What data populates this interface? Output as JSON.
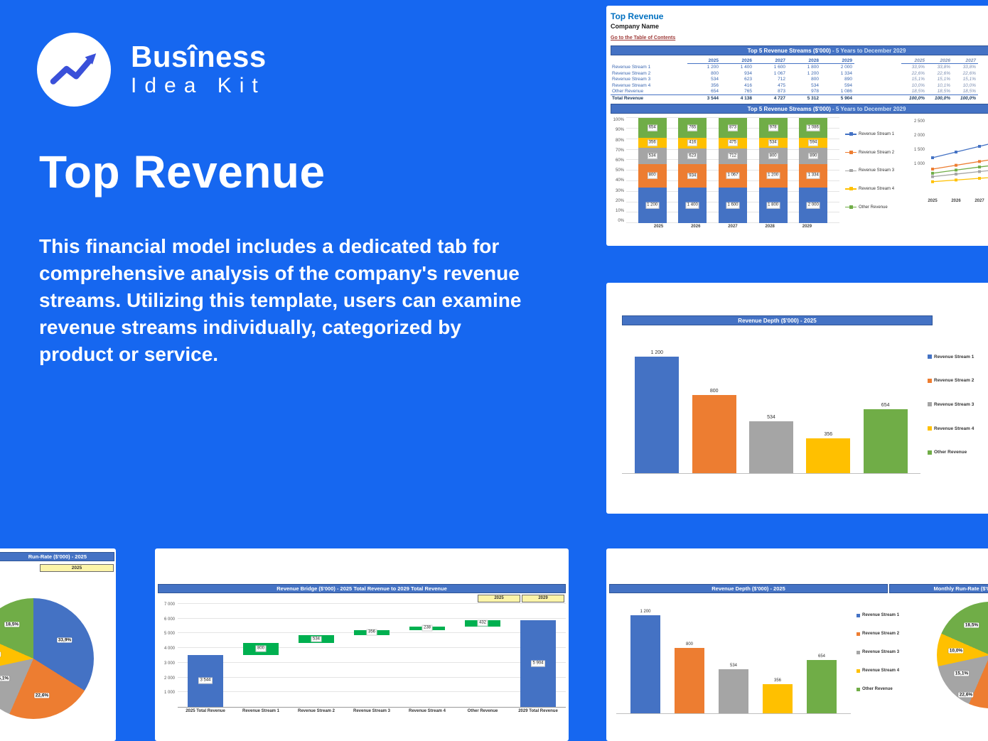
{
  "theme": {
    "page_background": "#1667f0",
    "panel_background": "#ffffff",
    "header_bar": "#4472c4",
    "logo_accent": "#3a50d9",
    "button_fill": "#fcf4a8",
    "series_palette": [
      "#4472c4",
      "#ed7d31",
      "#a5a5a5",
      "#ffc000",
      "#70ad47"
    ],
    "waterfall_green": "#00b050"
  },
  "brand": {
    "name_line1": "Busîness",
    "name_line2": "Idea Kit"
  },
  "hero": {
    "title": "Top Revenue",
    "description": "This financial model includes a dedicated tab for comprehensive analysis of the company's revenue streams. Utilizing this template, users can examine revenue streams individually, categorized by product or service."
  },
  "sheet": {
    "title": "Top Revenue",
    "company": "Company Name",
    "toc": "Go to the Table of Contents",
    "table_title": "Top 5 Revenue Streams ($'000)",
    "table_title_suffix": " - 5 Years to December 2029",
    "chart_title": "Top 5 Revenue Streams ($'000)",
    "chart_title_suffix": " - 5 Years to December 2029",
    "years": [
      "2025",
      "2026",
      "2027",
      "2028",
      "2029"
    ],
    "pct_years": [
      "2025",
      "2026",
      "2027"
    ],
    "rows": [
      {
        "label": "Revenue Stream 1",
        "values": [
          "1 200",
          "1 400",
          "1 600",
          "1 800",
          "2 000"
        ],
        "pcts": [
          "33,9%",
          "33,8%",
          "33,8%"
        ]
      },
      {
        "label": "Revenue Stream 2",
        "values": [
          "800",
          "934",
          "1 067",
          "1 200",
          "1 334"
        ],
        "pcts": [
          "22,6%",
          "22,6%",
          "22,6%"
        ]
      },
      {
        "label": "Revenue Stream 3",
        "values": [
          "534",
          "623",
          "712",
          "800",
          "890"
        ],
        "pcts": [
          "15,1%",
          "15,1%",
          "15,1%"
        ]
      },
      {
        "label": "Revenue Stream 4",
        "values": [
          "356",
          "416",
          "475",
          "534",
          "594"
        ],
        "pcts": [
          "10,0%",
          "10,1%",
          "10,0%"
        ]
      },
      {
        "label": "Other Revenue",
        "values": [
          "654",
          "765",
          "873",
          "978",
          "1 086"
        ],
        "pcts": [
          "18,5%",
          "18,5%",
          "18,5%"
        ]
      }
    ],
    "total": {
      "label": "Total Revenue",
      "values": [
        "3 544",
        "4 138",
        "4 727",
        "5 312",
        "5 904"
      ],
      "pcts": [
        "100,0%",
        "100,0%",
        "100,0%"
      ]
    }
  },
  "panels": {
    "depth": {
      "title": "Revenue Depth ($'000) - 2025"
    },
    "bridge": {
      "title": "Revenue Bridge ($'000) - 2025 Total Revenue to 2029 Total Revenue",
      "buttons": [
        "2025",
        "2029"
      ]
    },
    "runrate": {
      "title": "Run-Rate ($'000) - 2025",
      "year_tab": "2025"
    },
    "depth2": {
      "title": "Revenue Depth ($'000) - 2025"
    },
    "monthly": {
      "title": "Monthly Run-Rate ($'000) - 2025"
    }
  },
  "chart_data": [
    {
      "id": "stacked",
      "type": "bar",
      "stacked": true,
      "title": "Top 5 Revenue Streams ($'000) - 5 Years to December 2029",
      "categories": [
        "2025",
        "2026",
        "2027",
        "2028",
        "2029"
      ],
      "y_ticks": [
        "100%",
        "90%",
        "80%",
        "70%",
        "60%",
        "50%",
        "40%",
        "30%",
        "20%",
        "10%",
        "0%"
      ],
      "legend_position": "right",
      "series": [
        {
          "name": "Revenue Stream 1",
          "color": "#4472c4",
          "values": [
            1200,
            1400,
            1600,
            1800,
            2000
          ],
          "labels": [
            "1 200",
            "1 400",
            "1 600",
            "1 800",
            "2 000"
          ]
        },
        {
          "name": "Revenue Stream 2",
          "color": "#ed7d31",
          "values": [
            800,
            934,
            1067,
            1200,
            1334
          ],
          "labels": [
            "800",
            "934",
            "1 067",
            "1 200",
            "1 334"
          ]
        },
        {
          "name": "Revenue Stream 3",
          "color": "#a5a5a5",
          "values": [
            534,
            623,
            712,
            800,
            890
          ],
          "labels": [
            "534",
            "623",
            "712",
            "800",
            "890"
          ]
        },
        {
          "name": "Revenue Stream 4",
          "color": "#ffc000",
          "values": [
            356,
            416,
            475,
            534,
            594
          ],
          "labels": [
            "356",
            "416",
            "475",
            "534",
            "594"
          ]
        },
        {
          "name": "Other Revenue",
          "color": "#70ad47",
          "values": [
            654,
            765,
            873,
            978,
            1086
          ],
          "labels": [
            "654",
            "765",
            "873",
            "978",
            "1 086"
          ]
        }
      ]
    },
    {
      "id": "lines",
      "type": "line",
      "categories": [
        "2025",
        "2026",
        "2027",
        "2028",
        "2029"
      ],
      "y_ticks": [
        "2 500",
        "2 000",
        "1 500",
        "1 000"
      ],
      "ylim": [
        0,
        2500
      ],
      "series": [
        {
          "name": "Revenue Stream 1",
          "color": "#4472c4",
          "values": [
            1200,
            1400,
            1600,
            1800,
            2000
          ]
        },
        {
          "name": "Revenue Stream 2",
          "color": "#ed7d31",
          "values": [
            800,
            934,
            1067,
            1200,
            1334
          ]
        },
        {
          "name": "Revenue Stream 3",
          "color": "#a5a5a5",
          "values": [
            534,
            623,
            712,
            800,
            890
          ]
        },
        {
          "name": "Revenue Stream 4",
          "color": "#ffc000",
          "values": [
            356,
            416,
            475,
            534,
            594
          ]
        },
        {
          "name": "Other Revenue",
          "color": "#70ad47",
          "values": [
            654,
            765,
            873,
            978,
            1086
          ]
        }
      ]
    },
    {
      "id": "depth2025",
      "type": "bar",
      "title": "Revenue Depth ($'000) - 2025",
      "categories": [
        "Revenue Stream 1",
        "Revenue Stream 2",
        "Revenue Stream 3",
        "Revenue Stream 4",
        "Other Revenue"
      ],
      "values": [
        1200,
        800,
        534,
        356,
        654
      ],
      "labels": [
        "1 200",
        "800",
        "534",
        "356",
        "654"
      ],
      "colors": [
        "#4472c4",
        "#ed7d31",
        "#a5a5a5",
        "#ffc000",
        "#70ad47"
      ],
      "ylim": [
        0,
        1300
      ],
      "legend_position": "right"
    },
    {
      "id": "bridge",
      "type": "bar",
      "subtype": "waterfall",
      "title": "Revenue Bridge ($'000) - 2025 Total Revenue to 2029 Total Revenue",
      "categories": [
        "2025 Total Revenue",
        "Revenue Stream 1",
        "Revenue Stream 2",
        "Revenue Stream 3",
        "Revenue Stream 4",
        "Other Revenue",
        "2029 Total Revenue"
      ],
      "y_ticks": [
        "7 000",
        "6 000",
        "5 000",
        "4 000",
        "3 000",
        "2 000",
        "1 000"
      ],
      "ylim": [
        0,
        7000
      ],
      "bars": [
        {
          "start": 0,
          "end": 3544,
          "label": "3 544",
          "color": "#4472c4"
        },
        {
          "start": 3544,
          "end": 4344,
          "label": "800",
          "color": "#00b050"
        },
        {
          "start": 4344,
          "end": 4878,
          "label": "534",
          "color": "#00b050"
        },
        {
          "start": 4878,
          "end": 5234,
          "label": "356",
          "color": "#00b050"
        },
        {
          "start": 5234,
          "end": 5472,
          "label": "238",
          "color": "#00b050"
        },
        {
          "start": 5472,
          "end": 5904,
          "label": "432",
          "color": "#00b050"
        },
        {
          "start": 0,
          "end": 5904,
          "label": "5 904",
          "color": "#4472c4"
        }
      ]
    },
    {
      "id": "pie2025",
      "type": "pie",
      "title": "Run-Rate ($'000) - 2025",
      "slices": [
        {
          "name": "Revenue Stream 1",
          "pct": 33.9,
          "label": "33,9%",
          "color": "#4472c4"
        },
        {
          "name": "Revenue Stream 2",
          "pct": 22.6,
          "label": "22,6%",
          "color": "#ed7d31"
        },
        {
          "name": "Revenue Stream 3",
          "pct": 15.1,
          "label": "15,1%",
          "color": "#a5a5a5"
        },
        {
          "name": "Revenue Stream 4",
          "pct": 10.0,
          "label": "10,0%",
          "color": "#ffc000"
        },
        {
          "name": "Other Revenue",
          "pct": 18.5,
          "label": "18,5%",
          "color": "#70ad47"
        }
      ]
    },
    {
      "id": "depth2025b",
      "type": "bar",
      "title": "Revenue Depth ($'000) - 2025",
      "categories": [
        "Revenue Stream 1",
        "Revenue Stream 2",
        "Revenue Stream 3",
        "Revenue Stream 4",
        "Other Revenue"
      ],
      "values": [
        1200,
        800,
        534,
        356,
        654
      ],
      "labels": [
        "1 200",
        "800",
        "534",
        "356",
        "654"
      ],
      "colors": [
        "#4472c4",
        "#ed7d31",
        "#a5a5a5",
        "#ffc000",
        "#70ad47"
      ],
      "ylim": [
        0,
        1300
      ],
      "legend_position": "right"
    },
    {
      "id": "monthlypie",
      "type": "pie",
      "title": "Monthly Run-Rate ($'000) - 2025",
      "slices": [
        {
          "name": "Revenue Stream 1",
          "pct": 33.9,
          "label": "33,9%",
          "color": "#4472c4"
        },
        {
          "name": "Revenue Stream 2",
          "pct": 22.6,
          "label": "22,6%",
          "color": "#ed7d31"
        },
        {
          "name": "Revenue Stream 3",
          "pct": 15.1,
          "label": "15,1%",
          "color": "#a5a5a5"
        },
        {
          "name": "Revenue Stream 4",
          "pct": 10.0,
          "label": "10,0%",
          "color": "#ffc000"
        },
        {
          "name": "Other Revenue",
          "pct": 18.5,
          "label": "18,5%",
          "color": "#70ad47"
        }
      ]
    }
  ]
}
